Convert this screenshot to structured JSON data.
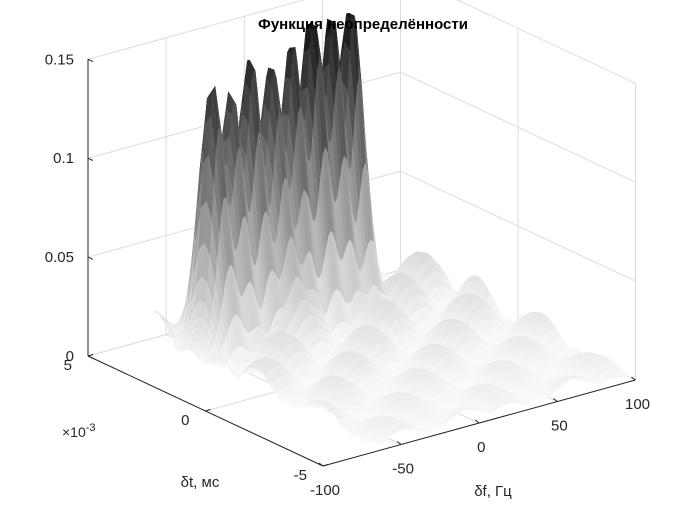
{
  "chart_data": {
    "type": "surface",
    "title": "Функция неопределённости",
    "xlabel": "δf, Гц",
    "ylabel": "δt, мс",
    "xlim": [
      -100,
      100
    ],
    "ylim": [
      -5,
      5
    ],
    "zlim": [
      0,
      0.15
    ],
    "x_ticks": [
      "-100",
      "-50",
      "0",
      "50",
      "100"
    ],
    "y_ticks": [
      "5",
      "0",
      "-5"
    ],
    "y_exponent": "×10-3",
    "z_ticks": [
      "0",
      "0.05",
      "0.1",
      "0.15"
    ],
    "grid": true,
    "colormap": "gray",
    "ridge_peak_count": 8,
    "ridge_peak_values": [
      0.118,
      0.123,
      0.128,
      0.133,
      0.138,
      0.143,
      0.147,
      0.15
    ]
  }
}
